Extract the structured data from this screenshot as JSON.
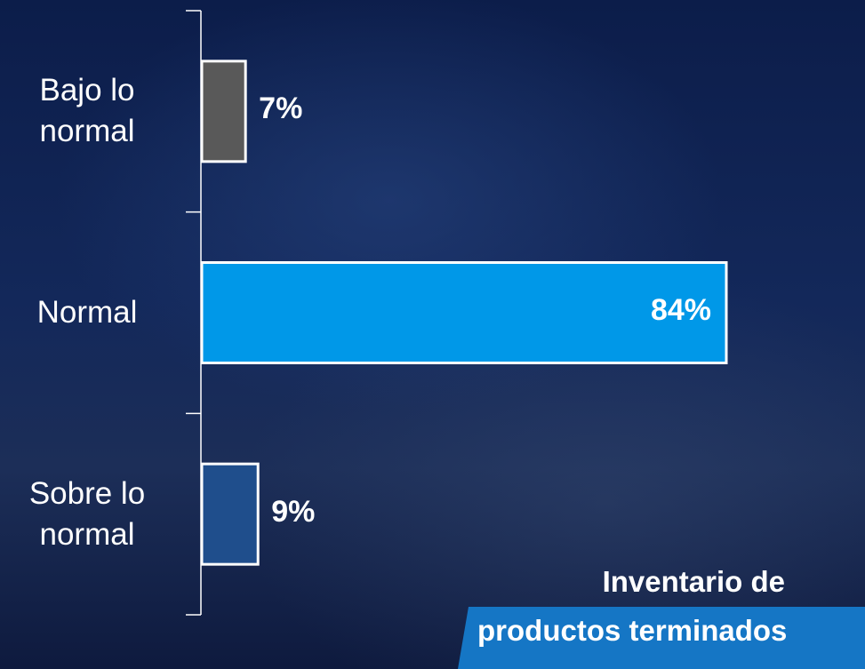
{
  "chart_data": {
    "type": "bar",
    "orientation": "horizontal",
    "categories": [
      "Bajo lo normal",
      "Normal",
      "Sobre lo normal"
    ],
    "category_lines": [
      [
        "Bajo lo",
        "normal"
      ],
      [
        "Normal"
      ],
      [
        "Sobre lo",
        "normal"
      ]
    ],
    "values": [
      7,
      84,
      9
    ],
    "value_labels": [
      "7%",
      "84%",
      "9%"
    ],
    "bar_colors": [
      "#595959",
      "#0098e8",
      "#1f4e8c"
    ],
    "xlim": [
      0,
      84
    ]
  },
  "caption": {
    "line1": "Inventario de",
    "line2": "productos terminados"
  },
  "colors": {
    "background": "#13285a",
    "caption_band": "#1576c5",
    "axis": "#ffffff"
  }
}
